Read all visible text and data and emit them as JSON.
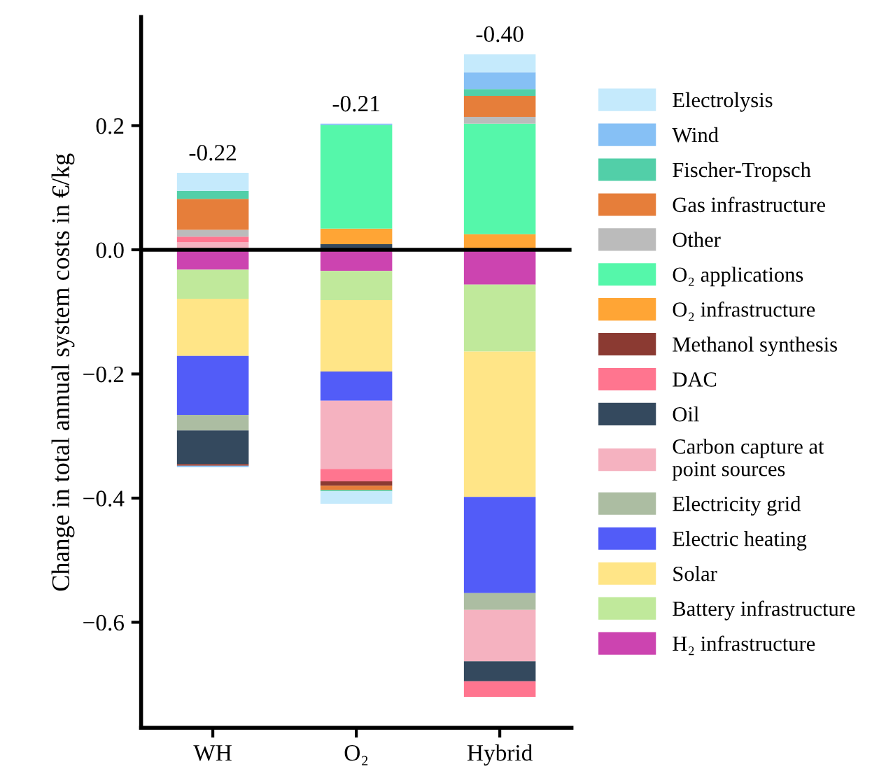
{
  "chart_data": {
    "type": "bar",
    "stacked": true,
    "ylabel": "Change in total annual system costs in €/kg",
    "categories": [
      "WH",
      "O₂",
      "Hybrid"
    ],
    "series": [
      {
        "name": "H₂ infrastructure",
        "color": "#cc44b0",
        "values": [
          -0.032,
          -0.034,
          -0.056
        ]
      },
      {
        "name": "Battery infrastructure",
        "color": "#c0e99b",
        "values": [
          -0.047,
          -0.047,
          -0.108
        ]
      },
      {
        "name": "Solar",
        "color": "#ffe587",
        "values": [
          -0.092,
          -0.115,
          -0.234
        ]
      },
      {
        "name": "Electric heating",
        "color": "#525cf8",
        "values": [
          -0.095,
          -0.047,
          -0.155
        ]
      },
      {
        "name": "Electricity grid",
        "color": "#acbda2",
        "values": [
          -0.025,
          null,
          -0.027
        ]
      },
      {
        "name": "Carbon capture at\npoint sources",
        "color": "#f5b2c0",
        "values": [
          0.012,
          -0.11,
          -0.083
        ]
      },
      {
        "name": "Oil",
        "color": "#34495e",
        "values": [
          -0.054,
          0.009,
          -0.032
        ]
      },
      {
        "name": "DAC",
        "color": "#ff758f",
        "values": [
          0.009,
          -0.02,
          -0.025
        ]
      },
      {
        "name": "Methanol synthesis",
        "color": "#8b3a32",
        "values": [
          -0.003,
          -0.007,
          null
        ]
      },
      {
        "name": "O₂ infrastructure",
        "color": "#ffa535",
        "values": [
          null,
          0.025,
          0.025
        ]
      },
      {
        "name": "O₂ applications",
        "color": "#55f7aa",
        "values": [
          null,
          0.167,
          0.178
        ]
      },
      {
        "name": "Other",
        "color": "#bbbbbb",
        "values": [
          0.011,
          null,
          0.011
        ]
      },
      {
        "name": "Gas infrastructure",
        "color": "#e67e3a",
        "values": [
          0.05,
          -0.007,
          0.034
        ]
      },
      {
        "name": "Fischer-Tropsch",
        "color": "#52cfa8",
        "values": [
          0.013,
          -0.002,
          0.011
        ]
      },
      {
        "name": "Wind",
        "color": "#86c0f5",
        "values": [
          -0.002,
          0.002,
          0.027
        ]
      },
      {
        "name": "Electrolysis",
        "color": "#c5eafc",
        "values": [
          0.029,
          -0.02,
          0.029
        ]
      }
    ],
    "totals": [
      "-0.22",
      "-0.21",
      "-0.40"
    ],
    "ylim": [
      -0.77,
      0.375
    ],
    "yticks": [
      {
        "value": -0.6,
        "label": "−0.6"
      },
      {
        "value": -0.4,
        "label": "−0.4"
      },
      {
        "value": -0.2,
        "label": "−0.2"
      },
      {
        "value": 0.0,
        "label": "0.0"
      },
      {
        "value": 0.2,
        "label": "0.2"
      }
    ],
    "ref_lines": [
      {
        "axis": "y",
        "value": 0,
        "color": "#000000"
      }
    ],
    "legend": "right",
    "grid": false
  }
}
